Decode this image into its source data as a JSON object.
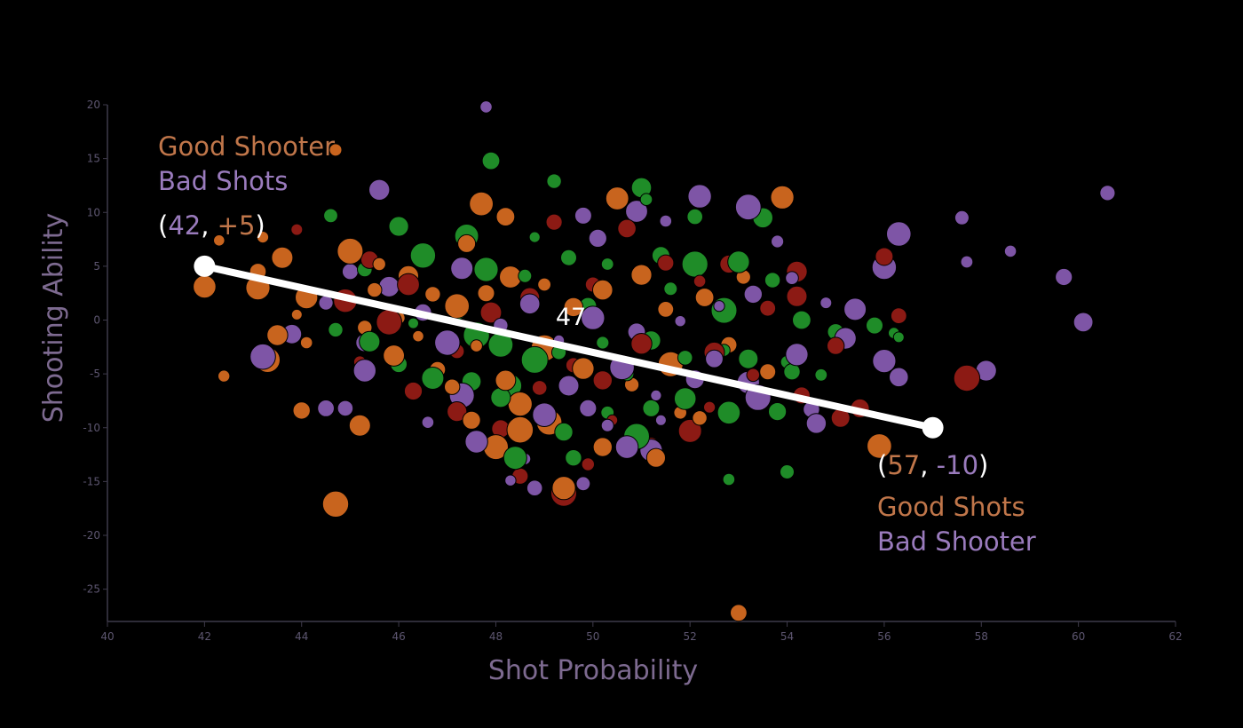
{
  "colors": {
    "background": "#000000",
    "orange": "#c8641e",
    "purple": "#7e55a6",
    "green": "#1f8c28",
    "red": "#8c1a14",
    "white": "#ffffff",
    "annotation_orange": "#c0764a",
    "annotation_purple": "#9a7bbd"
  },
  "chart_data": {
    "type": "scatter",
    "xlabel": "Shot Probability",
    "ylabel": "Shooting Ability",
    "xlim": [
      40,
      62
    ],
    "ylim": [
      -28,
      20
    ],
    "xticks": [
      40,
      42,
      44,
      46,
      48,
      50,
      52,
      54,
      56,
      58,
      60,
      62
    ],
    "yticks": [
      20,
      15,
      10,
      5,
      0,
      -5,
      -10,
      -15,
      -20,
      -25
    ],
    "grid": false,
    "series": [
      {
        "color_key": "orange",
        "points": [
          [
            44.7,
            15.8
          ],
          [
            42.3,
            7.4
          ],
          [
            43.2,
            7.7
          ],
          [
            43.6,
            5.8
          ],
          [
            43.1,
            4.5
          ],
          [
            42,
            3.1
          ],
          [
            43.1,
            3
          ],
          [
            44.1,
            2.1
          ],
          [
            43.9,
            0.5
          ],
          [
            43.5,
            -1.4
          ],
          [
            44.1,
            -2.1
          ],
          [
            43.3,
            -3.7
          ],
          [
            42.4,
            -5.2
          ],
          [
            44,
            -8.4
          ],
          [
            45.2,
            -9.8
          ],
          [
            44.7,
            -17.1
          ],
          [
            45,
            6.4
          ],
          [
            45.6,
            5.2
          ],
          [
            46.2,
            4.1
          ],
          [
            45.5,
            2.8
          ],
          [
            46.7,
            2.4
          ],
          [
            47.2,
            1.3
          ],
          [
            46,
            0.2
          ],
          [
            45.3,
            -0.7
          ],
          [
            46.4,
            -1.5
          ],
          [
            47.6,
            -2.4
          ],
          [
            45.9,
            -3.3
          ],
          [
            46.8,
            -4.6
          ],
          [
            48.2,
            -5.6
          ],
          [
            47.1,
            -6.2
          ],
          [
            48.5,
            -7.8
          ],
          [
            47.5,
            -9.3
          ],
          [
            48,
            -11.8
          ],
          [
            48.5,
            -10.2
          ],
          [
            47.8,
            2.5
          ],
          [
            48.3,
            4
          ],
          [
            49,
            3.3
          ],
          [
            49.6,
            1.2
          ],
          [
            50.2,
            2.8
          ],
          [
            51,
            4.2
          ],
          [
            51.5,
            1
          ],
          [
            52.3,
            2.1
          ],
          [
            53.1,
            4
          ],
          [
            53.9,
            11.4
          ],
          [
            50.5,
            11.3
          ],
          [
            49.8,
            -4.5
          ],
          [
            49,
            -2.6
          ],
          [
            50.8,
            -6
          ],
          [
            51.6,
            -4.1
          ],
          [
            52.8,
            -2.3
          ],
          [
            53.6,
            -4.8
          ],
          [
            52.2,
            -9.1
          ],
          [
            50.2,
            -11.8
          ],
          [
            51.3,
            -12.8
          ],
          [
            53,
            -27.2
          ],
          [
            55.9,
            -11.7
          ],
          [
            49.4,
            -15.6
          ],
          [
            47.7,
            10.8
          ],
          [
            48.2,
            9.6
          ],
          [
            47.4,
            7.1
          ],
          [
            49.1,
            -9.5
          ],
          [
            51.8,
            -8.6
          ]
        ]
      },
      {
        "color_key": "purple",
        "points": [
          [
            47.8,
            19.8
          ],
          [
            45.6,
            12.1
          ],
          [
            49.8,
            9.7
          ],
          [
            50.9,
            10.1
          ],
          [
            52.2,
            11.5
          ],
          [
            53.2,
            10.5
          ],
          [
            53.8,
            7.3
          ],
          [
            57.6,
            9.5
          ],
          [
            58.6,
            6.4
          ],
          [
            59.7,
            4
          ],
          [
            60.6,
            11.8
          ],
          [
            60.1,
            -0.2
          ],
          [
            57.7,
            5.4
          ],
          [
            56.3,
            8
          ],
          [
            56,
            4.9
          ],
          [
            56,
            -3.8
          ],
          [
            56.3,
            -5.3
          ],
          [
            58.1,
            -4.7
          ],
          [
            55.4,
            1
          ],
          [
            55.2,
            -1.7
          ],
          [
            54.1,
            3.9
          ],
          [
            54.2,
            -3.2
          ],
          [
            54.5,
            -8.3
          ],
          [
            54.6,
            -9.6
          ],
          [
            53.2,
            -5.8
          ],
          [
            52.5,
            -3.6
          ],
          [
            50.6,
            -4.4
          ],
          [
            51.3,
            -7
          ],
          [
            49.5,
            -6.1
          ],
          [
            49.9,
            -8.2
          ],
          [
            50.7,
            -11.8
          ],
          [
            49.8,
            -15.2
          ],
          [
            48.6,
            -12.9
          ],
          [
            48.8,
            -15.6
          ],
          [
            48.3,
            -14.9
          ],
          [
            47.6,
            -11.3
          ],
          [
            47.3,
            -7
          ],
          [
            46.6,
            -9.5
          ],
          [
            44.9,
            -8.2
          ],
          [
            45.3,
            -4.7
          ],
          [
            43.8,
            -1.3
          ],
          [
            44.5,
            1.6
          ],
          [
            45,
            4.5
          ],
          [
            45.8,
            3.1
          ],
          [
            46.5,
            0.7
          ],
          [
            47,
            -2.1
          ],
          [
            48.1,
            -0.5
          ],
          [
            48.7,
            1.5
          ],
          [
            49.3,
            -1.9
          ],
          [
            50,
            0.2
          ],
          [
            50.9,
            -1.1
          ],
          [
            51.8,
            -0.1
          ],
          [
            52.6,
            1.3
          ],
          [
            53.3,
            2.4
          ],
          [
            54.8,
            1.6
          ],
          [
            53.4,
            -7.2
          ],
          [
            52.1,
            -5.5
          ],
          [
            51.4,
            -9.3
          ],
          [
            50.3,
            -9.8
          ]
        ]
      },
      {
        "color_key": "green",
        "points": [
          [
            47.9,
            14.8
          ],
          [
            49.2,
            12.9
          ],
          [
            51,
            12.3
          ],
          [
            51.1,
            11.2
          ],
          [
            52.1,
            9.6
          ],
          [
            53.5,
            9.5
          ],
          [
            46,
            8.7
          ],
          [
            47.4,
            7.8
          ],
          [
            48.8,
            7.7
          ],
          [
            44.6,
            9.7
          ],
          [
            46.5,
            6
          ],
          [
            47.8,
            4.7
          ],
          [
            45.3,
            4.7
          ],
          [
            45.8,
            2.9
          ],
          [
            48.6,
            4.1
          ],
          [
            49.5,
            5.8
          ],
          [
            50.3,
            5.2
          ],
          [
            51.4,
            6
          ],
          [
            52.1,
            5.2
          ],
          [
            53,
            5.4
          ],
          [
            53.7,
            3.7
          ],
          [
            47.2,
            0.9
          ],
          [
            46.3,
            -0.3
          ],
          [
            44.7,
            -0.9
          ],
          [
            45.4,
            -2
          ],
          [
            47.6,
            -1.4
          ],
          [
            48.1,
            -2.3
          ],
          [
            48.8,
            -3.7
          ],
          [
            49.3,
            -3
          ],
          [
            50.2,
            -2.1
          ],
          [
            51.2,
            -1.9
          ],
          [
            51.9,
            -3.5
          ],
          [
            52.7,
            -2.8
          ],
          [
            53.2,
            -3.6
          ],
          [
            54,
            -3.9
          ],
          [
            54.3,
            0
          ],
          [
            54.1,
            -4.8
          ],
          [
            55,
            -1.1
          ],
          [
            55.8,
            -0.5
          ],
          [
            56.2,
            -1.2
          ],
          [
            56.3,
            -1.6
          ],
          [
            54.7,
            -5.1
          ],
          [
            53.8,
            -8.5
          ],
          [
            52.8,
            -8.6
          ],
          [
            51.9,
            -7.3
          ],
          [
            51.2,
            -8.2
          ],
          [
            50.3,
            -8.6
          ],
          [
            49.4,
            -10.4
          ],
          [
            48.4,
            -12.8
          ],
          [
            48.1,
            -7.2
          ],
          [
            47.5,
            -5.7
          ],
          [
            46.7,
            -5.4
          ],
          [
            46,
            -4.1
          ],
          [
            54,
            -14.1
          ],
          [
            52.8,
            -14.8
          ],
          [
            50.9,
            -10.8
          ],
          [
            49.6,
            -12.8
          ],
          [
            52.7,
            0.9
          ],
          [
            51.6,
            2.9
          ],
          [
            49.9,
            1.3
          ],
          [
            48.3,
            -6.1
          ],
          [
            50.7,
            -5
          ]
        ]
      },
      {
        "color_key": "red",
        "points": [
          [
            43.9,
            8.4
          ],
          [
            45.4,
            5.6
          ],
          [
            46.2,
            3.3
          ],
          [
            44.9,
            1.8
          ],
          [
            45.8,
            -0.2
          ],
          [
            45.2,
            -3.9
          ],
          [
            46.3,
            -6.6
          ],
          [
            47.2,
            -2.9
          ],
          [
            47.9,
            0.7
          ],
          [
            48.7,
            2.1
          ],
          [
            49.2,
            9.1
          ],
          [
            50,
            3.3
          ],
          [
            50.7,
            8.5
          ],
          [
            51.5,
            5.3
          ],
          [
            52.2,
            3.6
          ],
          [
            52.8,
            5.2
          ],
          [
            53.6,
            1.1
          ],
          [
            54.2,
            4.5
          ],
          [
            54.2,
            2.2
          ],
          [
            56,
            5.9
          ],
          [
            56.3,
            0.4
          ],
          [
            55.5,
            -8.2
          ],
          [
            55,
            -2.4
          ],
          [
            54.3,
            -7
          ],
          [
            53.3,
            -5.1
          ],
          [
            52.4,
            -8.1
          ],
          [
            51.2,
            -11.6
          ],
          [
            50.4,
            -9.3
          ],
          [
            49.6,
            -4.2
          ],
          [
            48.9,
            -6.3
          ],
          [
            48.1,
            -10.1
          ],
          [
            48.5,
            -14.5
          ],
          [
            49.4,
            -16.1
          ],
          [
            49.9,
            -13.4
          ],
          [
            57.7,
            -5.4
          ],
          [
            55.1,
            -9.1
          ],
          [
            52,
            -10.3
          ],
          [
            50.2,
            -5.6
          ],
          [
            47.2,
            -8.5
          ],
          [
            51,
            -2.2
          ],
          [
            52.5,
            -3
          ]
        ]
      },
      {
        "color_key": "purple",
        "points": [
          [
            44.5,
            -8.2
          ],
          [
            43.2,
            -3.4
          ],
          [
            45.3,
            -2.1
          ],
          [
            47.3,
            4.8
          ],
          [
            50.1,
            7.6
          ],
          [
            51.5,
            9.2
          ],
          [
            49,
            -8.8
          ],
          [
            51.2,
            -12.1
          ]
        ]
      }
    ],
    "segment": {
      "from": [
        42,
        5
      ],
      "to": [
        57,
        -10
      ],
      "value_label": "47"
    }
  },
  "annotations": {
    "top_left": {
      "line1": "Good Shooter",
      "line2": "Bad Shots",
      "open": "(",
      "x_value": "42",
      "sep": ", ",
      "y_value": "+5",
      "close": ")"
    },
    "bottom_right": {
      "open": "(",
      "x_value": "57",
      "sep": ", ",
      "y_value": "-10",
      "close": ")",
      "line1": "Good Shots",
      "line2": "Bad Shooter"
    }
  }
}
